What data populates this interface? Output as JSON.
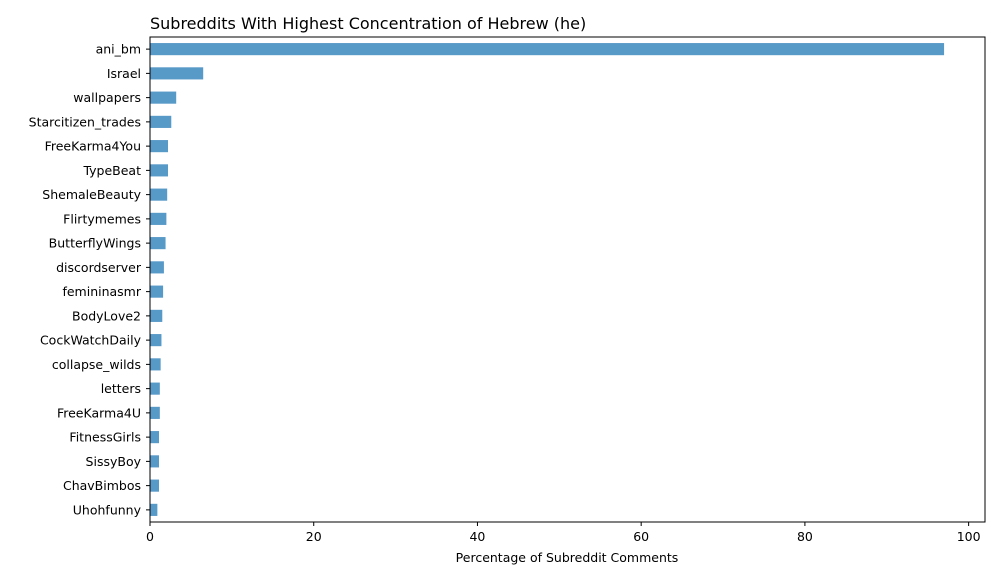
{
  "chart_data": {
    "type": "bar",
    "orientation": "horizontal",
    "title": "Subreddits With Highest Concentration of Hebrew (he)",
    "xlabel": "Percentage of Subreddit Comments",
    "ylabel": "",
    "xlim": [
      0,
      102
    ],
    "xticks": [
      0,
      20,
      40,
      60,
      80,
      100
    ],
    "grid": false,
    "bar_color": "#5799c7",
    "categories": [
      "ani_bm",
      "Israel",
      "wallpapers",
      "Starcitizen_trades",
      "FreeKarma4You",
      "TypeBeat",
      "ShemaleBeauty",
      "Flirtymemes",
      "ButterflyWings",
      "discordserver",
      "femininasmr",
      "BodyLove2",
      "CockWatchDaily",
      "collapse_wilds",
      "letters",
      "FreeKarma4U",
      "FitnessGirls",
      "SissyBoy",
      "ChavBimbos",
      "Uhohfunny"
    ],
    "values": [
      97.0,
      6.5,
      3.2,
      2.6,
      2.2,
      2.2,
      2.1,
      2.0,
      1.9,
      1.7,
      1.6,
      1.5,
      1.4,
      1.3,
      1.2,
      1.2,
      1.1,
      1.1,
      1.1,
      0.9
    ]
  }
}
